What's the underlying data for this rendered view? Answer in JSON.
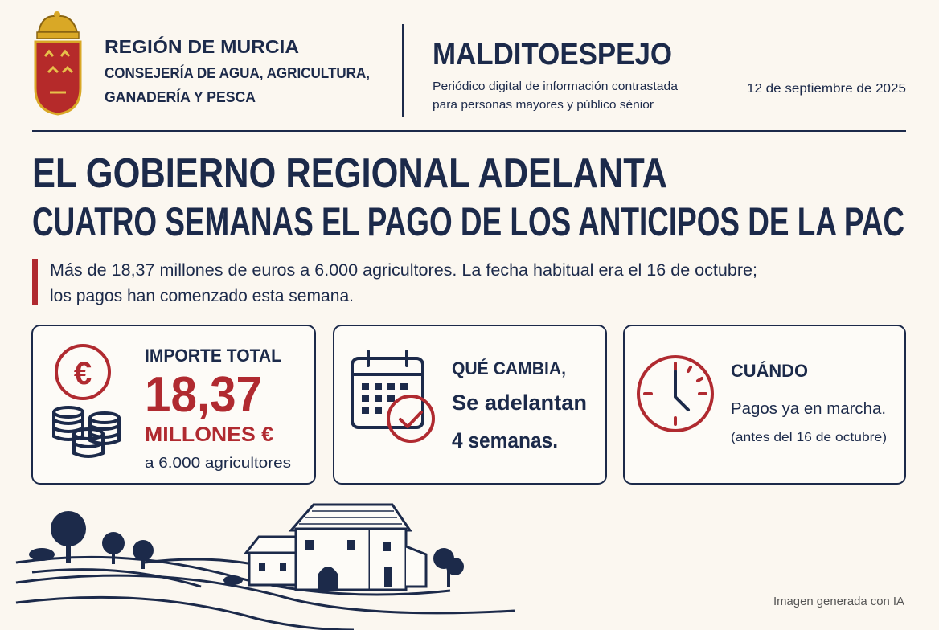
{
  "header": {
    "organization": {
      "lines": [
        "REGIÓN DE MURCIA",
        "CONSEJERÍA DE AGUA, AGRICULTURA,",
        "GANADERÍA Y PESCA"
      ]
    },
    "publication": {
      "name": "MALDITOESPEJO",
      "tagline": [
        "Periódico digital de información contrastada",
        "para personas mayores y público sénior"
      ]
    },
    "date": "12 de septiembre de 2025"
  },
  "headline": [
    "EL GOBIERNO REGIONAL ADELANTA",
    "CUATRO SEMANAS EL PAGO DE LOS ANTICIPOS DE LA PAC"
  ],
  "lead": [
    "Más de 18,37 millones de euros a 6.000 agricultores. La fecha habitual era el 16 de octubre;",
    "los pagos han comenzado esta semana."
  ],
  "cards": [
    {
      "title": "IMPORTE TOTAL",
      "value": "18,37",
      "unit": "MILLONES €",
      "note": "a 6.000 agricultores"
    },
    {
      "title": "QUÉ CAMBIA,",
      "lines": [
        "Se adelantan",
        "4 semanas."
      ]
    },
    {
      "title": "CUÁNDO",
      "lines": [
        "Pagos ya en marcha.",
        "(antes del 16 de octubre)"
      ]
    }
  ],
  "footer": {
    "credit": "Imagen generada con IA"
  }
}
